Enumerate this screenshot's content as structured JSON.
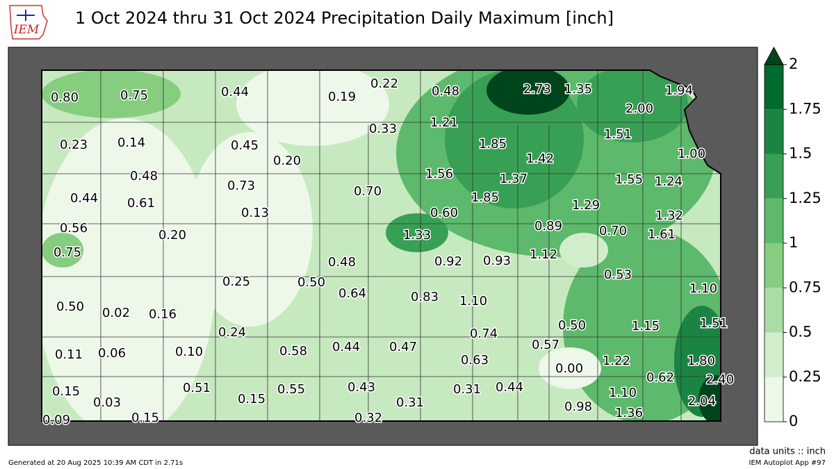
{
  "header": {
    "logo": "IEM",
    "title": "1 Oct 2024 thru 31 Oct 2024 Precipitation Daily Maximum [inch]"
  },
  "map": {
    "labels": [
      "0.80",
      "0.75",
      "0.44",
      "0.19",
      "0.22",
      "0.48",
      "2.73",
      "1.35",
      "1.94",
      "2.00",
      "1.21",
      "0.33",
      "1.51",
      "0.23",
      "0.14",
      "0.45",
      "0.20",
      "1.85",
      "1.42",
      "1.00",
      "0.48",
      "1.56",
      "1.37",
      "1.55",
      "1.24",
      "0.73",
      "0.70",
      "0.44",
      "0.61",
      "1.85",
      "1.29",
      "0.13",
      "0.60",
      "1.32",
      "0.56",
      "1.33",
      "0.89",
      "0.70",
      "1.61",
      "0.20",
      "0.75",
      "1.12",
      "0.92",
      "0.93",
      "0.48",
      "0.53",
      "0.25",
      "0.50",
      "0.64",
      "1.10",
      "0.83",
      "1.10",
      "0.50",
      "0.02",
      "0.16",
      "0.50",
      "1.15",
      "1.51",
      "0.74",
      "0.24",
      "0.58",
      "0.44",
      "0.47",
      "0.57",
      "0.11",
      "0.06",
      "0.10",
      "0.63",
      "0.00",
      "1.22",
      "1.80",
      "0.62",
      "2.40",
      "0.51",
      "0.43",
      "0.55",
      "0.31",
      "0.44",
      "0.15",
      "0.03",
      "0.15",
      "0.31",
      "1.10",
      "2.04",
      "0.98",
      "1.36",
      "0.09",
      "0.15",
      "0.32"
    ]
  },
  "colorbar": {
    "ticks": [
      0,
      0.25,
      0.5,
      0.75,
      1,
      1.25,
      1.5,
      1.75,
      2
    ],
    "colors": [
      "#edf8e9",
      "#d2edcb",
      "#aadda3",
      "#86cd80",
      "#5db96b",
      "#38a055",
      "#1c8443",
      "#006b2e"
    ],
    "over_color": "#00441b"
  },
  "footer": {
    "units": "data units :: inch",
    "generated": "Generated at 20 Aug 2025 10:39 AM CDT in 2.71s",
    "app": "IEM Autoplot App #97"
  }
}
